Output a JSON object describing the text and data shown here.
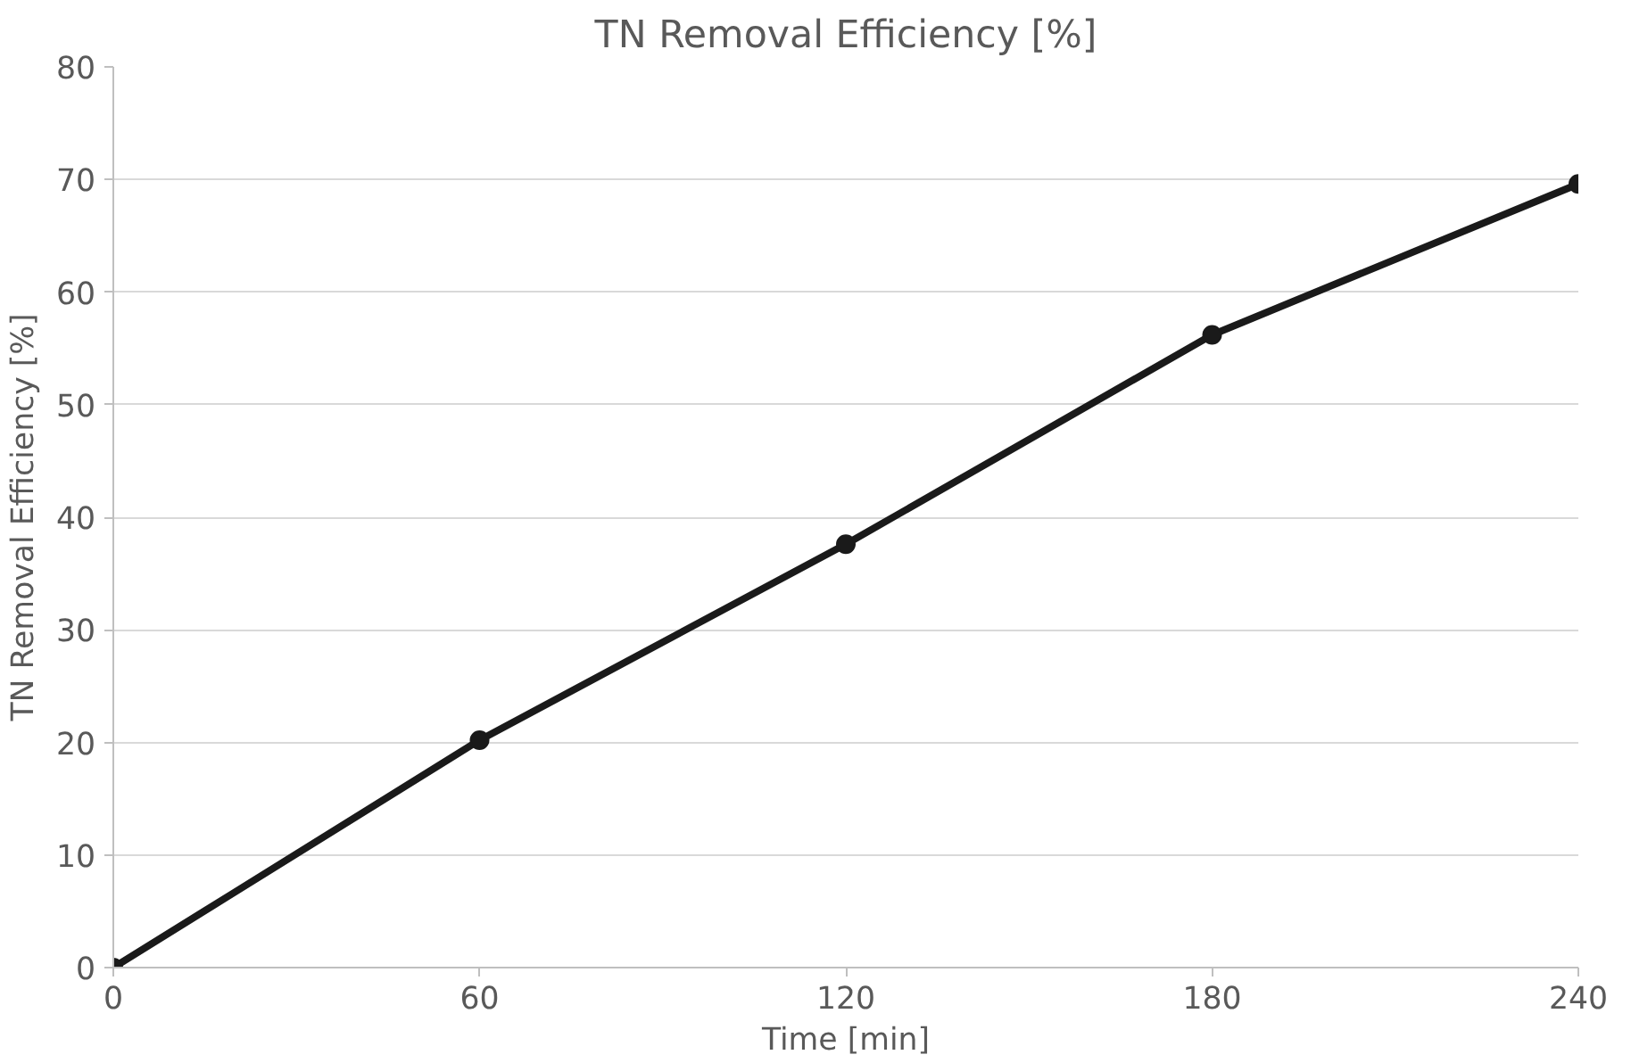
{
  "chart_data": {
    "type": "line",
    "title": "TN Removal Efficiency [%]",
    "xlabel": "Time [min]",
    "ylabel": "TN Removal Efficiency [%]",
    "x": [
      0,
      60,
      120,
      180,
      240
    ],
    "series": [
      {
        "color": "#1a1a1a",
        "values": [
          0,
          20.2,
          37.6,
          56.2,
          69.6
        ]
      }
    ],
    "xlim": [
      0,
      240
    ],
    "xticks": [
      0,
      60,
      120,
      180,
      240
    ],
    "ylim": [
      0,
      80
    ],
    "yticks": [
      0,
      10,
      20,
      30,
      40,
      50,
      60,
      70,
      80
    ],
    "grid": "y",
    "marker": "circle",
    "line_style": "solid"
  }
}
